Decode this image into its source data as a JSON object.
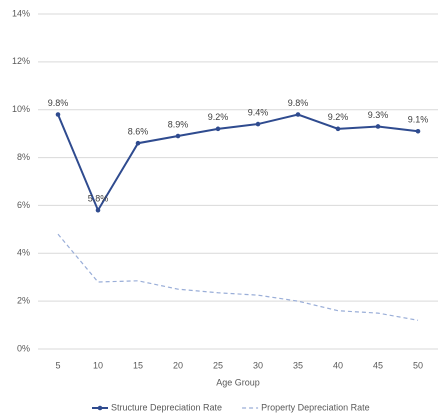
{
  "chart_data": {
    "type": "line",
    "x_label": "Age Group",
    "categories": [
      "5",
      "10",
      "15",
      "20",
      "25",
      "30",
      "35",
      "40",
      "45",
      "50"
    ],
    "series": [
      {
        "name": "Structure Depreciation Rate",
        "color": "#2f4b8f",
        "dashed": false,
        "markers": true,
        "values": [
          9.8,
          5.8,
          8.6,
          8.9,
          9.2,
          9.4,
          9.8,
          9.2,
          9.3,
          9.1
        ],
        "value_labels": [
          "9.8%",
          "5.8%",
          "8.6%",
          "8.9%",
          "9.2%",
          "9.4%",
          "9.8%",
          "9.2%",
          "9.3%",
          "9.1%"
        ]
      },
      {
        "name": "Property Depreciation Rate",
        "color": "#9aaed8",
        "dashed": true,
        "markers": false,
        "values": [
          4.8,
          2.8,
          2.85,
          2.5,
          2.35,
          2.25,
          2.0,
          1.6,
          1.5,
          1.2
        ]
      }
    ],
    "ylim": [
      0,
      14
    ],
    "yticks": [
      {
        "value": 0,
        "label": "0%"
      },
      {
        "value": 2,
        "label": "2%"
      },
      {
        "value": 4,
        "label": "4%"
      },
      {
        "value": 6,
        "label": "6%"
      },
      {
        "value": 8,
        "label": "8%"
      },
      {
        "value": 10,
        "label": "10%"
      },
      {
        "value": 12,
        "label": "12%"
      },
      {
        "value": 14,
        "label": "14%"
      }
    ],
    "grid": true,
    "legend": "bottom"
  }
}
